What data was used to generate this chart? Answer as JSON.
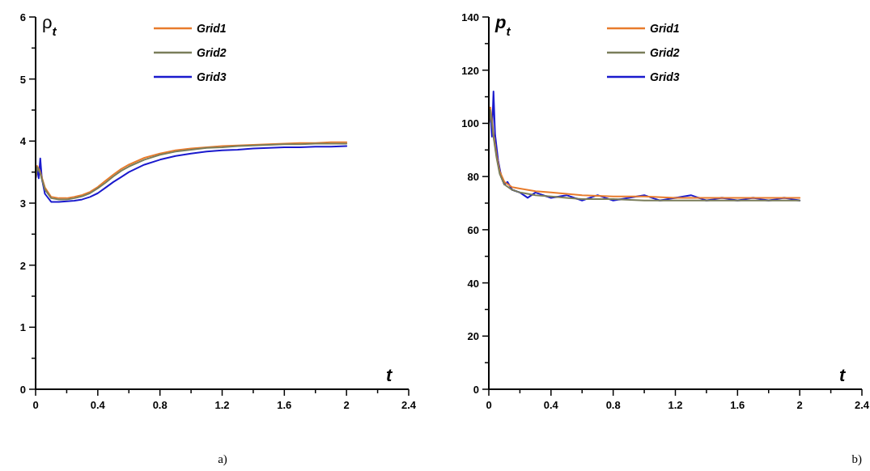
{
  "chart_data": [
    {
      "type": "line",
      "ylabel": "ρ$_{t}$",
      "xlabel": "t",
      "annotations": [
        "a)"
      ],
      "legend": "top",
      "xlim": [
        0,
        2.4
      ],
      "ylim": [
        0,
        6
      ],
      "xticks": [
        0,
        {
          "value": 0.2,
          "label": null
        },
        0.4,
        {
          "value": 0.6,
          "label": null
        },
        0.8,
        {
          "value": 1.0,
          "label": null
        },
        1.2,
        {
          "value": 1.4,
          "label": null
        },
        1.6,
        {
          "value": 1.8,
          "label": null
        },
        2,
        {
          "value": 2.2,
          "label": null
        },
        2.4
      ],
      "yticks": [
        0,
        {
          "value": 0.5,
          "label": null
        },
        1,
        {
          "value": 1.5,
          "label": null
        },
        2,
        {
          "value": 2.5,
          "label": null
        },
        3,
        {
          "value": 3.5,
          "label": null
        },
        4,
        {
          "value": 4.5,
          "label": null
        },
        5,
        {
          "value": 5.5,
          "label": null
        },
        6
      ],
      "series": [
        {
          "name": "Grid1",
          "color": "#e87b2c",
          "x": [
            0,
            0.01,
            0.03,
            0.06,
            0.1,
            0.15,
            0.2,
            0.25,
            0.3,
            0.35,
            0.4,
            0.45,
            0.5,
            0.55,
            0.6,
            0.7,
            0.8,
            0.9,
            1.0,
            1.1,
            1.2,
            1.3,
            1.4,
            1.5,
            1.6,
            1.7,
            1.8,
            1.9,
            2.0
          ],
          "values": [
            3.4,
            3.6,
            3.5,
            3.25,
            3.1,
            3.08,
            3.08,
            3.1,
            3.13,
            3.18,
            3.26,
            3.36,
            3.46,
            3.55,
            3.62,
            3.73,
            3.8,
            3.85,
            3.88,
            3.9,
            3.92,
            3.93,
            3.94,
            3.95,
            3.96,
            3.97,
            3.97,
            3.98,
            3.98
          ]
        },
        {
          "name": "Grid2",
          "color": "#7a7d5a",
          "x": [
            0,
            0.01,
            0.03,
            0.06,
            0.1,
            0.15,
            0.2,
            0.25,
            0.3,
            0.35,
            0.4,
            0.45,
            0.5,
            0.55,
            0.6,
            0.7,
            0.8,
            0.9,
            1.0,
            1.1,
            1.2,
            1.3,
            1.4,
            1.5,
            1.6,
            1.7,
            1.8,
            1.9,
            2.0
          ],
          "values": [
            3.4,
            3.58,
            3.48,
            3.22,
            3.08,
            3.06,
            3.06,
            3.08,
            3.11,
            3.16,
            3.24,
            3.33,
            3.43,
            3.52,
            3.59,
            3.7,
            3.78,
            3.83,
            3.86,
            3.89,
            3.9,
            3.92,
            3.93,
            3.94,
            3.95,
            3.95,
            3.96,
            3.96,
            3.96
          ]
        },
        {
          "name": "Grid3",
          "color": "#1a1acd",
          "x": [
            0,
            0.01,
            0.02,
            0.03,
            0.04,
            0.06,
            0.1,
            0.15,
            0.2,
            0.25,
            0.3,
            0.35,
            0.4,
            0.45,
            0.5,
            0.55,
            0.6,
            0.7,
            0.8,
            0.9,
            1.0,
            1.1,
            1.2,
            1.3,
            1.4,
            1.5,
            1.6,
            1.7,
            1.8,
            1.9,
            2.0
          ],
          "values": [
            3.4,
            3.55,
            3.4,
            3.72,
            3.4,
            3.15,
            3.02,
            3.02,
            3.03,
            3.04,
            3.06,
            3.1,
            3.16,
            3.25,
            3.34,
            3.42,
            3.5,
            3.62,
            3.7,
            3.76,
            3.8,
            3.83,
            3.85,
            3.86,
            3.88,
            3.89,
            3.9,
            3.9,
            3.91,
            3.91,
            3.92
          ]
        }
      ]
    },
    {
      "type": "line",
      "ylabel": "p$_{t}$",
      "xlabel": "t",
      "annotations": [
        "b)"
      ],
      "legend": "top",
      "xlim": [
        0,
        2.4
      ],
      "ylim": [
        0,
        140
      ],
      "xticks": [
        0,
        {
          "value": 0.2,
          "label": null
        },
        0.4,
        {
          "value": 0.6,
          "label": null
        },
        0.8,
        {
          "value": 1.0,
          "label": null
        },
        1.2,
        {
          "value": 1.4,
          "label": null
        },
        1.6,
        {
          "value": 1.8,
          "label": null
        },
        2,
        {
          "value": 2.2,
          "label": null
        },
        2.4
      ],
      "yticks": [
        0,
        {
          "value": 10,
          "label": null
        },
        20,
        {
          "value": 30,
          "label": null
        },
        40,
        {
          "value": 50,
          "label": null
        },
        60,
        {
          "value": 70,
          "label": null
        },
        80,
        {
          "value": 90,
          "label": null
        },
        100,
        {
          "value": 110,
          "label": null
        },
        120,
        {
          "value": 130,
          "label": null
        },
        140
      ],
      "series": [
        {
          "name": "Grid1",
          "color": "#e87b2c",
          "x": [
            0,
            0.01,
            0.03,
            0.05,
            0.07,
            0.1,
            0.15,
            0.2,
            0.3,
            0.4,
            0.5,
            0.6,
            0.8,
            1.0,
            1.2,
            1.4,
            1.6,
            1.8,
            2.0
          ],
          "values": [
            100,
            106,
            96,
            88,
            82,
            78,
            76,
            75.5,
            74.5,
            74,
            73.5,
            73,
            72.5,
            72.5,
            72,
            72,
            72,
            72,
            72
          ]
        },
        {
          "name": "Grid2",
          "color": "#7a7d5a",
          "x": [
            0,
            0.01,
            0.03,
            0.05,
            0.07,
            0.1,
            0.15,
            0.2,
            0.3,
            0.4,
            0.5,
            0.6,
            0.8,
            1.0,
            1.2,
            1.4,
            1.6,
            1.8,
            2.0
          ],
          "values": [
            100,
            105,
            95,
            87,
            81,
            77,
            75,
            74,
            73,
            72.5,
            72,
            71.5,
            71.5,
            71,
            71,
            71,
            71,
            71,
            71
          ]
        },
        {
          "name": "Grid3",
          "color": "#1a1acd",
          "x": [
            0,
            0.01,
            0.02,
            0.03,
            0.04,
            0.06,
            0.08,
            0.1,
            0.12,
            0.15,
            0.2,
            0.25,
            0.3,
            0.4,
            0.5,
            0.6,
            0.7,
            0.8,
            0.9,
            1.0,
            1.1,
            1.2,
            1.3,
            1.4,
            1.5,
            1.6,
            1.7,
            1.8,
            1.9,
            2.0
          ],
          "values": [
            100,
            104,
            95,
            112,
            96,
            86,
            80,
            77,
            78,
            75,
            74,
            72,
            74,
            72,
            73,
            71,
            73,
            71,
            72,
            73,
            71,
            72,
            73,
            71,
            72,
            71,
            72,
            71,
            72,
            71
          ]
        }
      ]
    }
  ]
}
